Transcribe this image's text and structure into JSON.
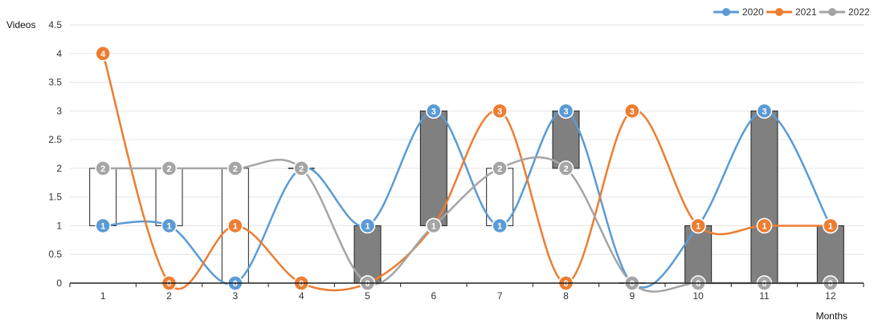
{
  "chart_data": {
    "type": "line",
    "x": [
      1,
      2,
      3,
      4,
      5,
      6,
      7,
      8,
      9,
      10,
      11,
      12
    ],
    "series": [
      {
        "name": "2020",
        "color": "#5b9bd5",
        "values": [
          1,
          1,
          0,
          2,
          1,
          3,
          1,
          3,
          0,
          1,
          3,
          1
        ]
      },
      {
        "name": "2021",
        "color": "#ed7d31",
        "values": [
          4,
          0,
          1,
          0,
          0,
          1,
          3,
          0,
          3,
          1,
          1,
          1
        ]
      },
      {
        "name": "2022",
        "color": "#a5a5a5",
        "values": [
          2,
          2,
          2,
          2,
          0,
          1,
          2,
          2,
          0,
          0,
          0,
          0
        ]
      }
    ],
    "candles": [
      {
        "x": 1,
        "low": 1,
        "high": 2,
        "fill": "#ffffff"
      },
      {
        "x": 2,
        "low": 1,
        "high": 2,
        "fill": "#ffffff"
      },
      {
        "x": 3,
        "low": 0,
        "high": 2,
        "fill": "#ffffff"
      },
      {
        "x": 4,
        "low": 2,
        "high": 2,
        "fill": "#ffffff"
      },
      {
        "x": 5,
        "low": 0,
        "high": 1,
        "fill": "#808080"
      },
      {
        "x": 6,
        "low": 1,
        "high": 3,
        "fill": "#808080"
      },
      {
        "x": 7,
        "low": 1,
        "high": 2,
        "fill": "#ffffff"
      },
      {
        "x": 8,
        "low": 2,
        "high": 3,
        "fill": "#808080"
      },
      {
        "x": 9,
        "low": 0,
        "high": 0,
        "fill": "#ffffff"
      },
      {
        "x": 10,
        "low": 0,
        "high": 1,
        "fill": "#808080"
      },
      {
        "x": 11,
        "low": 0,
        "high": 3,
        "fill": "#808080"
      },
      {
        "x": 12,
        "low": 0,
        "high": 1,
        "fill": "#808080"
      }
    ],
    "xticks": [
      "1",
      "2",
      "3",
      "4",
      "5",
      "6",
      "7",
      "8",
      "9",
      "10",
      "11",
      "12"
    ],
    "yticks": [
      "0",
      "0.5",
      "1",
      "1.5",
      "2",
      "2.5",
      "3",
      "3.5",
      "4",
      "4.5"
    ],
    "ylim": [
      0,
      4.5
    ],
    "xlabel": "Months",
    "ylabel": "Videos",
    "grid": true,
    "legend_position": "top-right"
  }
}
